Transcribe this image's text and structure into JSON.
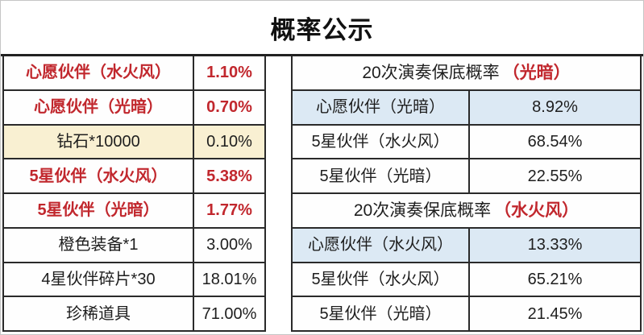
{
  "title": "概率公示",
  "colors": {
    "accent_red": "#c1272d",
    "cream_highlight": "#f9f0d2",
    "blue_highlight": "#dce9f4",
    "border": "#2a2a2a",
    "text": "#1e1e1e"
  },
  "left_table": {
    "rows": [
      {
        "name": "心愿伙伴（水火风）",
        "value": "1.10%",
        "emphasis": "red"
      },
      {
        "name": "心愿伙伴（光暗）",
        "value": "0.70%",
        "emphasis": "red"
      },
      {
        "name": "钻石*10000",
        "value": "0.10%",
        "emphasis": "cream"
      },
      {
        "name": "5星伙伴（水火风）",
        "value": "5.38%",
        "emphasis": "red"
      },
      {
        "name": "5星伙伴（光暗）",
        "value": "1.77%",
        "emphasis": "red"
      },
      {
        "name": "橙色装备*1",
        "value": "3.00%",
        "emphasis": "none"
      },
      {
        "name": "4星伙伴碎片*30",
        "value": "18.01%",
        "emphasis": "none"
      },
      {
        "name": "珍稀道具",
        "value": "71.00%",
        "emphasis": "none"
      }
    ]
  },
  "right_table": {
    "sections": [
      {
        "header_text": "20次演奏保底概率",
        "header_highlight": "（光暗）",
        "rows": [
          {
            "name": "心愿伙伴（光暗）",
            "value": "8.92%",
            "emphasis": "blue"
          },
          {
            "name": "5星伙伴（水火风）",
            "value": "68.54%",
            "emphasis": "none"
          },
          {
            "name": "5星伙伴（光暗）",
            "value": "22.55%",
            "emphasis": "none"
          }
        ]
      },
      {
        "header_text": "20次演奏保底概率",
        "header_highlight": "（水火风）",
        "rows": [
          {
            "name": "心愿伙伴（水火风）",
            "value": "13.33%",
            "emphasis": "blue"
          },
          {
            "name": "5星伙伴（水火风）",
            "value": "65.21%",
            "emphasis": "none"
          },
          {
            "name": "5星伙伴（光暗）",
            "value": "21.45%",
            "emphasis": "none"
          }
        ]
      }
    ]
  }
}
